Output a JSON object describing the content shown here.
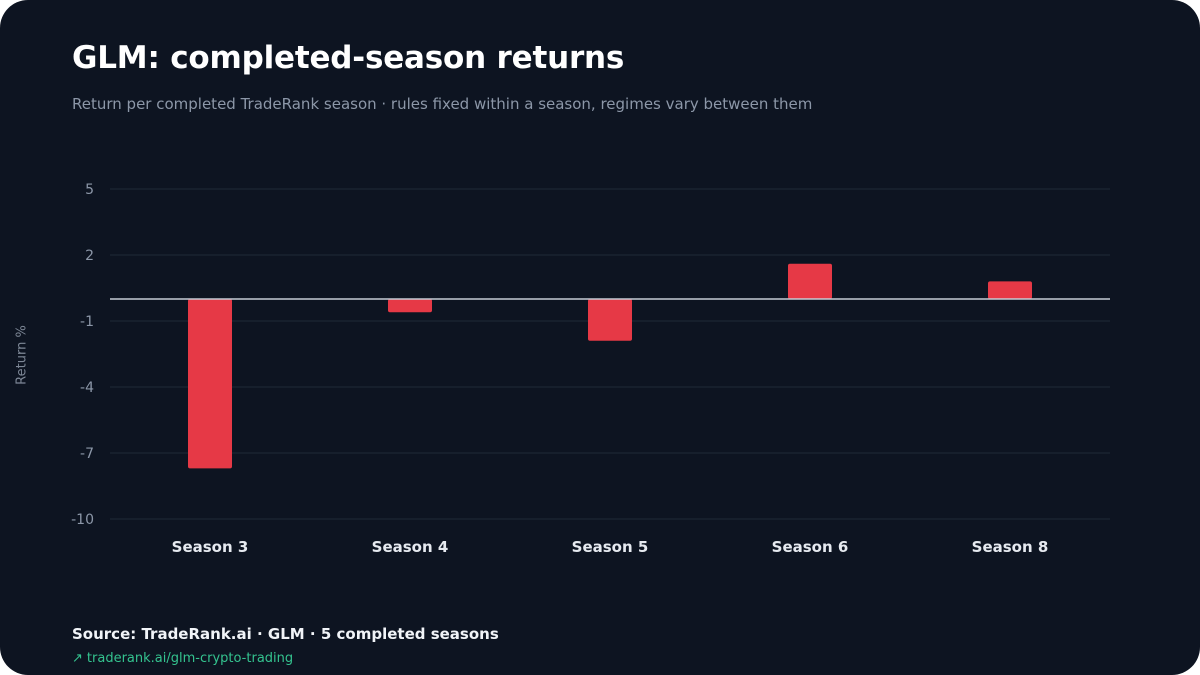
{
  "title": "GLM: completed-season returns",
  "subtitle": "Return per completed TradeRank season · rules fixed within a season, regimes vary between them",
  "footer": {
    "source": "Source: TradeRank.ai · GLM · 5 completed seasons",
    "link_text": "traderank.ai/glm-crypto-trading",
    "link_icon": "arrow-up-right-icon"
  },
  "colors": {
    "background": "#0d1421",
    "bar": "#e63946",
    "grid": "#1f2a36",
    "zero_line": "#c5ccd6",
    "link": "#34c38f"
  },
  "chart_data": {
    "type": "bar",
    "title": "GLM: completed-season returns",
    "subtitle": "Return per completed TradeRank season · rules fixed within a season, regimes vary between them",
    "xlabel": "",
    "ylabel": "Return %",
    "categories": [
      "Season 3",
      "Season 4",
      "Season 5",
      "Season 6",
      "Season 8"
    ],
    "values": [
      -7.7,
      -0.6,
      -1.9,
      1.6,
      0.8
    ],
    "yticks": [
      5,
      2,
      -1,
      -4,
      -7,
      -10
    ],
    "ylim": [
      -10,
      5
    ],
    "grid": true,
    "legend": "none"
  }
}
